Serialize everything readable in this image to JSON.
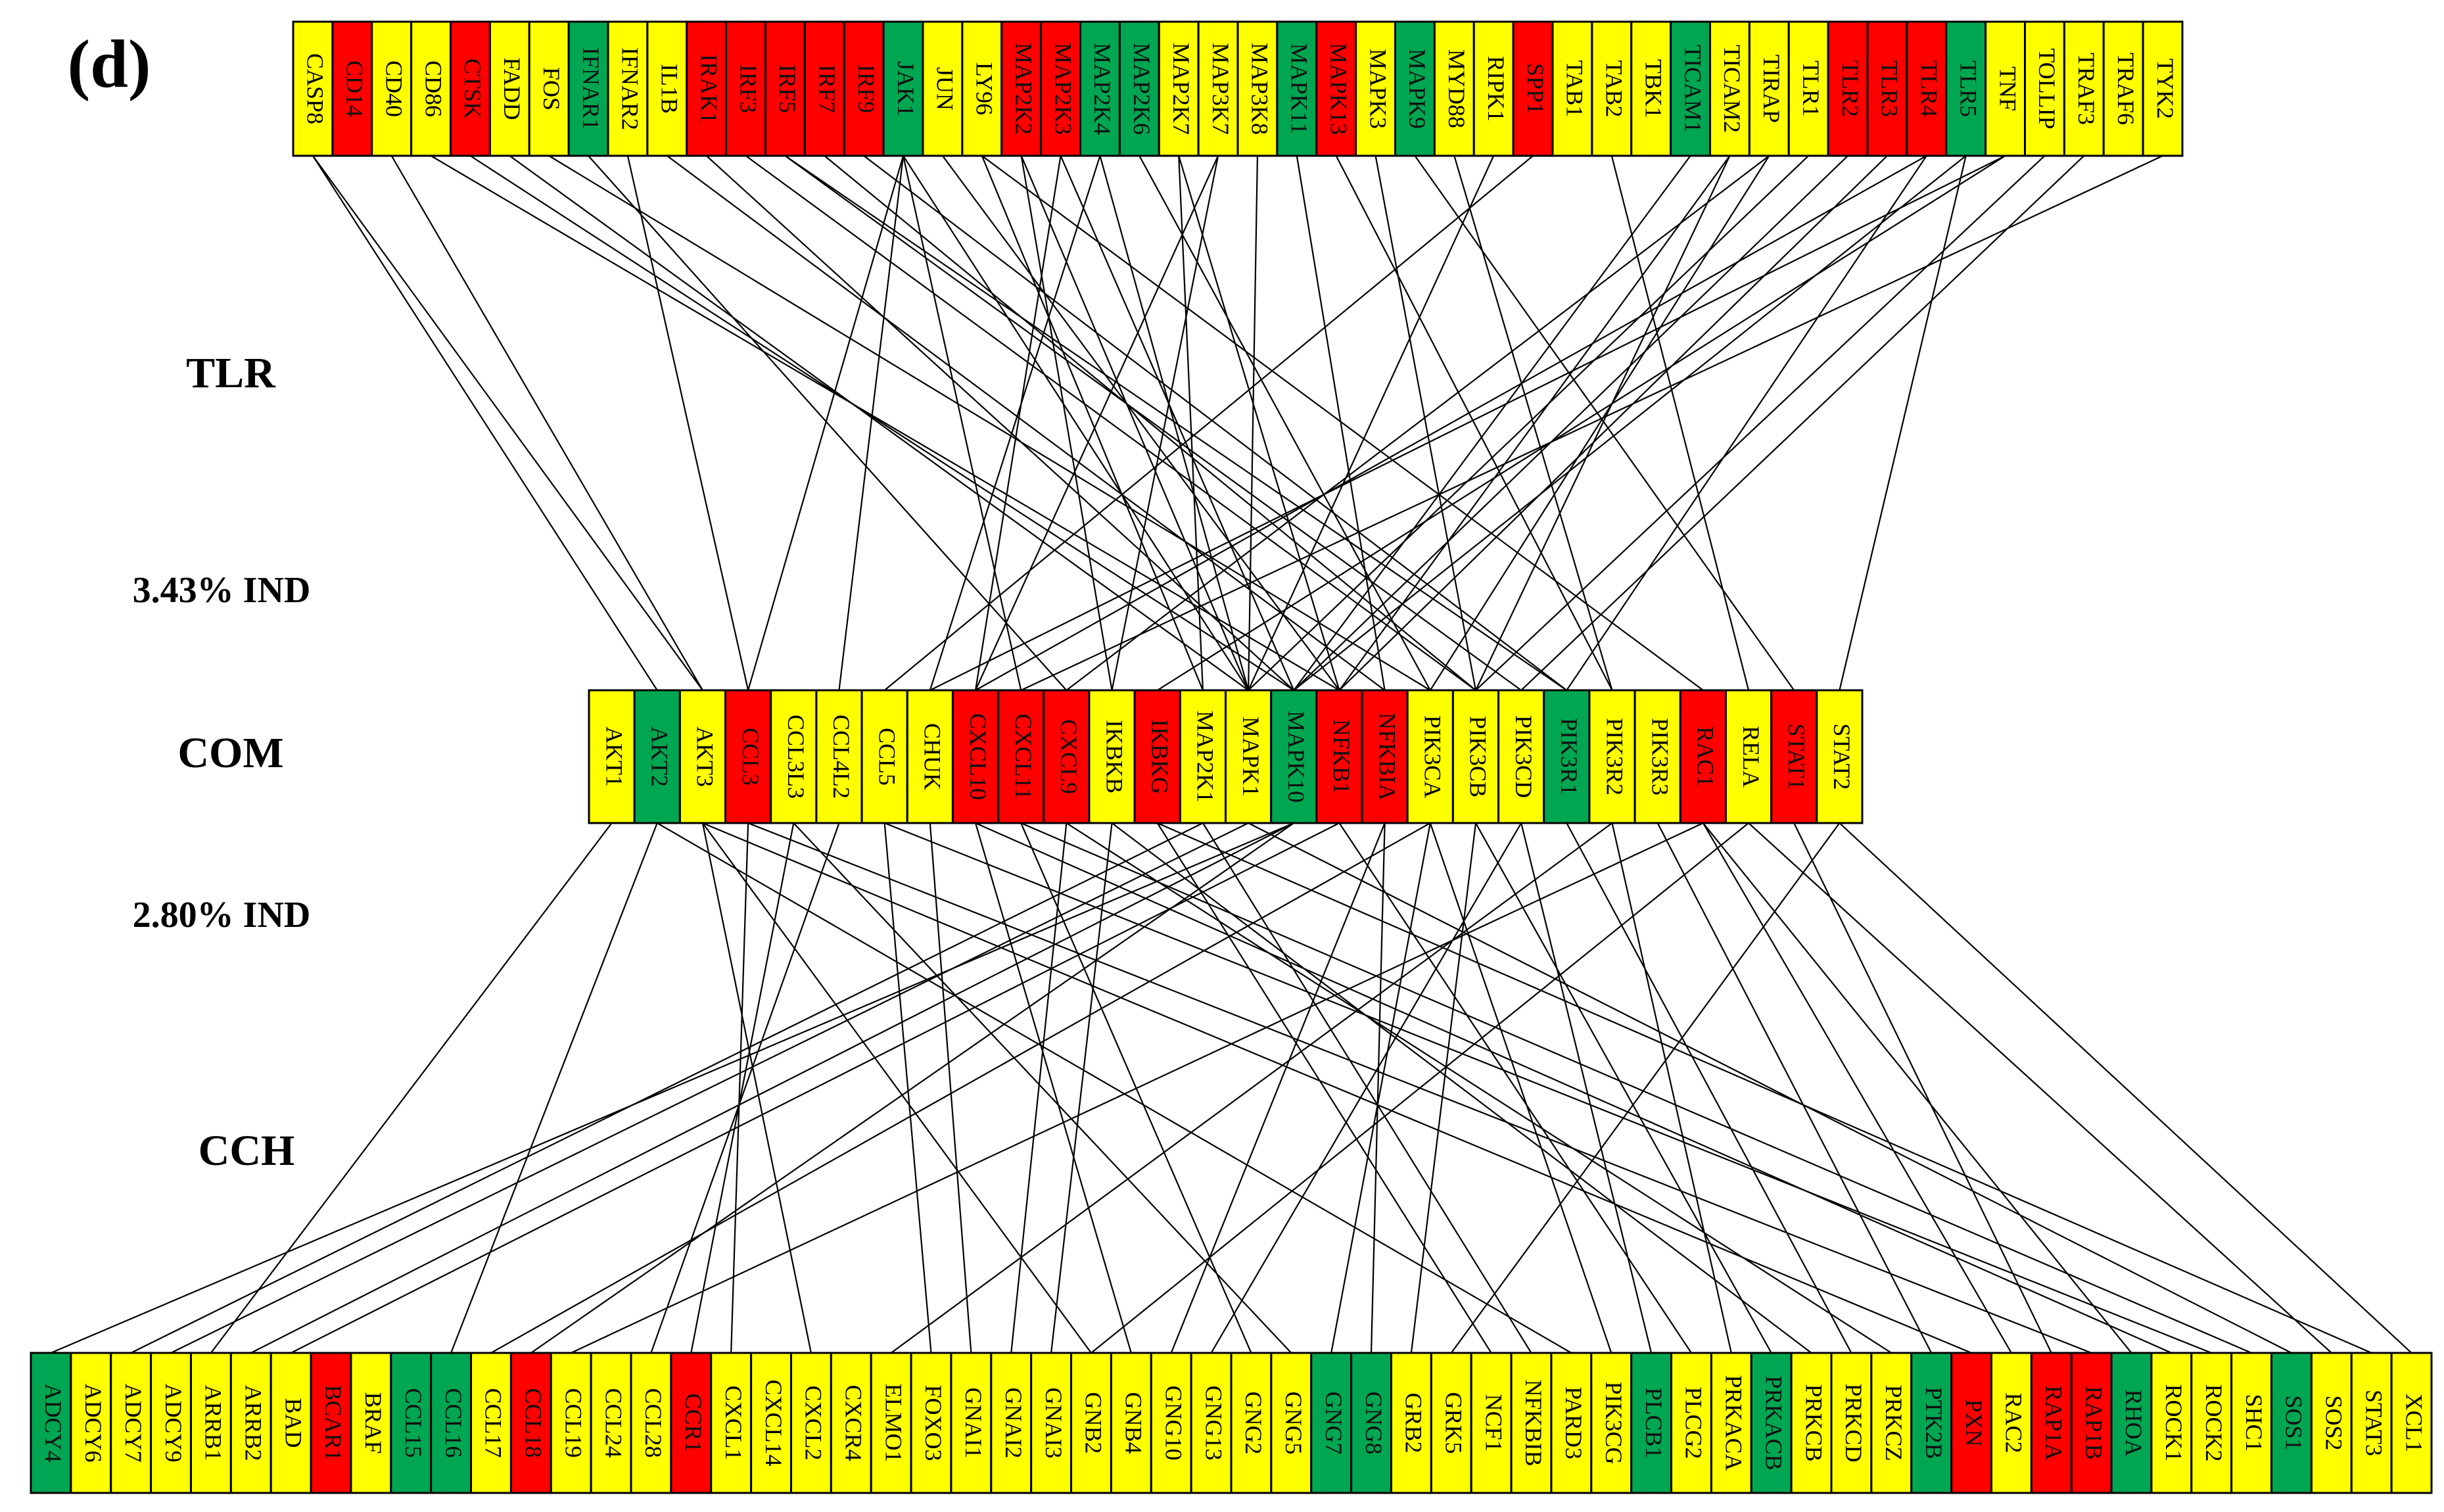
{
  "panel_label": "(d)",
  "rows": [
    {
      "label": "TLR",
      "genes": [
        "CASP8",
        "CD14",
        "CD40",
        "CD86",
        "CTSK",
        "FADD",
        "FOS",
        "IFNAR1",
        "IFNAR2",
        "IL1B",
        "IRAK1",
        "IRF3",
        "IRF5",
        "IRF7",
        "IRF9",
        "JAK1",
        "JUN",
        "LY96",
        "MAP2K2",
        "MAP2K3",
        "MAP2K4",
        "MAP2K6",
        "MAP2K7",
        "MAP3K7",
        "MAP3K8",
        "MAPK11",
        "MAPK13",
        "MAPK3",
        "MAPK9",
        "MYD88",
        "RIPK1",
        "SPP1",
        "TAB1",
        "TAB2",
        "TBK1",
        "TICAM1",
        "TICAM2",
        "TIRAP",
        "TLR1",
        "TLR2",
        "TLR3",
        "TLR4",
        "TLR5",
        "TNF",
        "TOLLIP",
        "TRAF3",
        "TRAF6",
        "TYK2"
      ],
      "colors": [
        "yellow",
        "red",
        "yellow",
        "yellow",
        "red",
        "yellow",
        "yellow",
        "green",
        "yellow",
        "yellow",
        "red",
        "red",
        "red",
        "red",
        "red",
        "green",
        "yellow",
        "yellow",
        "red",
        "red",
        "green",
        "green",
        "yellow",
        "yellow",
        "yellow",
        "green",
        "red",
        "yellow",
        "green",
        "yellow",
        "yellow",
        "red",
        "yellow",
        "yellow",
        "yellow",
        "green",
        "yellow",
        "yellow",
        "yellow",
        "red",
        "red",
        "red",
        "green",
        "yellow",
        "yellow",
        "yellow",
        "yellow",
        "yellow"
      ]
    },
    {
      "label": "COM",
      "genes": [
        "AKT1",
        "AKT2",
        "AKT3",
        "CCL3",
        "CCL3L3",
        "CCL4L2",
        "CCL5",
        "CHUK",
        "CXCL10",
        "CXCL11",
        "CXCL9",
        "IKBKB",
        "IKBKG",
        "MAP2K1",
        "MAPK1",
        "MAPK10",
        "NFKB1",
        "NFKBIA",
        "PIK3CA",
        "PIK3CB",
        "PIK3CD",
        "PIK3R1",
        "PIK3R2",
        "PIK3R3",
        "RAC1",
        "RELA",
        "STAT1",
        "STAT2"
      ],
      "colors": [
        "yellow",
        "green",
        "yellow",
        "red",
        "yellow",
        "yellow",
        "yellow",
        "yellow",
        "red",
        "red",
        "red",
        "yellow",
        "red",
        "yellow",
        "yellow",
        "green",
        "red",
        "red",
        "yellow",
        "yellow",
        "yellow",
        "green",
        "yellow",
        "yellow",
        "red",
        "yellow",
        "red",
        "yellow"
      ]
    },
    {
      "label": "CCH",
      "genes": [
        "ADCY4",
        "ADCY6",
        "ADCY7",
        "ADCY9",
        "ARRB1",
        "ARRB2",
        "BAD",
        "BCAR1",
        "BRAF",
        "CCL15",
        "CCL16",
        "CCL17",
        "CCL18",
        "CCL19",
        "CCL24",
        "CCL28",
        "CCR1",
        "CXCL1",
        "CXCL14",
        "CXCL2",
        "CXCR4",
        "ELMO1",
        "FOXO3",
        "GNAI1",
        "GNAI2",
        "GNAI3",
        "GNB2",
        "GNB4",
        "GNG10",
        "GNG13",
        "GNG2",
        "GNG5",
        "GNG7",
        "GNG8",
        "GRB2",
        "GRK5",
        "NCF1",
        "NFKBIB",
        "PARD3",
        "PIK3CG",
        "PLCB1",
        "PLCG2",
        "PRKACA",
        "PRKACB",
        "PRKCB",
        "PRKCD",
        "PRKCZ",
        "PTK2B",
        "PXN",
        "RAC2",
        "RAP1A",
        "RAP1B",
        "RHOA",
        "ROCK1",
        "ROCK2",
        "SHC1",
        "SOS1",
        "SOS2",
        "STAT3",
        "XCL1"
      ],
      "colors": [
        "green",
        "yellow",
        "yellow",
        "yellow",
        "yellow",
        "yellow",
        "yellow",
        "red",
        "yellow",
        "green",
        "green",
        "yellow",
        "red",
        "yellow",
        "yellow",
        "yellow",
        "red",
        "yellow",
        "yellow",
        "yellow",
        "yellow",
        "yellow",
        "yellow",
        "yellow",
        "yellow",
        "yellow",
        "yellow",
        "yellow",
        "yellow",
        "yellow",
        "yellow",
        "yellow",
        "green",
        "green",
        "yellow",
        "yellow",
        "yellow",
        "yellow",
        "yellow",
        "yellow",
        "green",
        "yellow",
        "yellow",
        "green",
        "yellow",
        "yellow",
        "yellow",
        "green",
        "red",
        "yellow",
        "red",
        "red",
        "green",
        "yellow",
        "yellow",
        "yellow",
        "green",
        "yellow",
        "yellow",
        "yellow"
      ]
    }
  ],
  "ind_labels": [
    "3.43% IND",
    "2.80% IND"
  ]
}
